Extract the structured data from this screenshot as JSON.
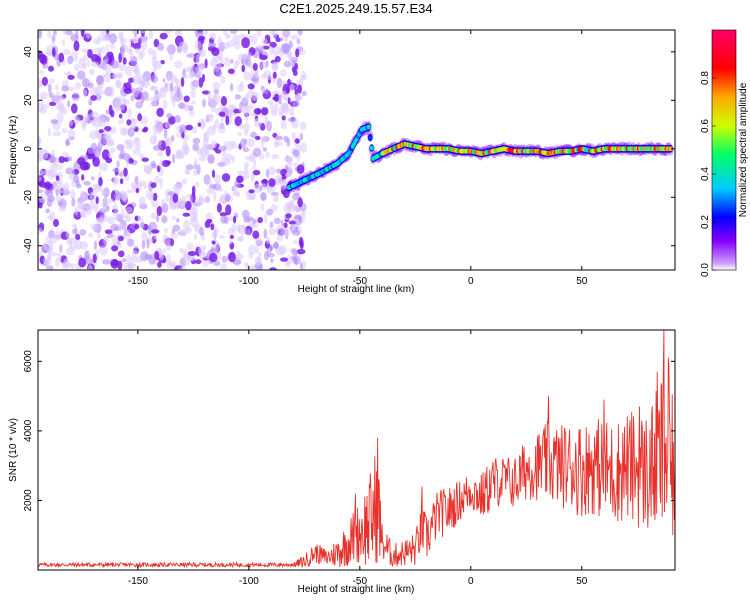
{
  "chart_data": [
    {
      "type": "heatmap",
      "title": "C2E1.2025.249.15.57.E34",
      "xlabel": "Height of straight line (km)",
      "ylabel": "Frequency (Hz)",
      "xlim": [
        -195,
        92
      ],
      "ylim": [
        -50,
        49
      ],
      "xticks": [
        -150,
        -100,
        -50,
        0,
        50
      ],
      "yticks": [
        -40,
        -20,
        0,
        20,
        40
      ],
      "colorbar": {
        "label": "Normalized spectral amplitude",
        "range": [
          0.0,
          1.0
        ],
        "ticks": [
          0.0,
          0.2,
          0.4,
          0.6,
          0.8
        ],
        "colors": [
          "#ffffff",
          "#cc99ff",
          "#8800ff",
          "#0000ff",
          "#00ccff",
          "#00ff66",
          "#ccff00",
          "#ffaa00",
          "#ff0000",
          "#ff0066"
        ]
      },
      "noise_region": {
        "x_range": [
          -195,
          -75
        ],
        "y_range": [
          -50,
          49
        ],
        "level": 0.15
      },
      "trace": [
        {
          "x": -82,
          "f": -16
        },
        {
          "x": -75,
          "f": -13
        },
        {
          "x": -68,
          "f": -10
        },
        {
          "x": -60,
          "f": -6
        },
        {
          "x": -55,
          "f": -2
        },
        {
          "x": -52,
          "f": 3
        },
        {
          "x": -49,
          "f": 8
        },
        {
          "x": -46,
          "f": 9
        },
        {
          "x": -44,
          "f": -4
        },
        {
          "x": -40,
          "f": -2
        },
        {
          "x": -35,
          "f": 0
        },
        {
          "x": -30,
          "f": 2
        },
        {
          "x": -25,
          "f": 1
        },
        {
          "x": -20,
          "f": 0
        },
        {
          "x": -15,
          "f": 0
        },
        {
          "x": -10,
          "f": 0
        },
        {
          "x": -5,
          "f": -1
        },
        {
          "x": 0,
          "f": -1
        },
        {
          "x": 5,
          "f": -2
        },
        {
          "x": 10,
          "f": -1
        },
        {
          "x": 15,
          "f": 0
        },
        {
          "x": 20,
          "f": -1
        },
        {
          "x": 25,
          "f": -1
        },
        {
          "x": 30,
          "f": -1
        },
        {
          "x": 35,
          "f": -2
        },
        {
          "x": 40,
          "f": -1
        },
        {
          "x": 45,
          "f": -1
        },
        {
          "x": 50,
          "f": 0
        },
        {
          "x": 55,
          "f": -1
        },
        {
          "x": 60,
          "f": 0
        },
        {
          "x": 65,
          "f": 0
        },
        {
          "x": 70,
          "f": 0
        },
        {
          "x": 75,
          "f": 0
        },
        {
          "x": 80,
          "f": 0
        },
        {
          "x": 85,
          "f": 0
        },
        {
          "x": 90,
          "f": 0
        }
      ]
    },
    {
      "type": "line",
      "xlabel": "Height of straight line (km)",
      "ylabel": "SNR (10 * v/v)",
      "xlim": [
        -195,
        92
      ],
      "ylim": [
        0,
        6900
      ],
      "xticks": [
        -150,
        -100,
        -50,
        0,
        50
      ],
      "yticks": [
        2000,
        4000,
        6000
      ],
      "color": "#e8312a",
      "envelope": [
        {
          "x": -195,
          "mean": 150,
          "spread": 60
        },
        {
          "x": -80,
          "mean": 150,
          "spread": 60
        },
        {
          "x": -75,
          "mean": 250,
          "spread": 200
        },
        {
          "x": -70,
          "mean": 500,
          "spread": 300
        },
        {
          "x": -65,
          "mean": 350,
          "spread": 250
        },
        {
          "x": -60,
          "mean": 500,
          "spread": 450
        },
        {
          "x": -55,
          "mean": 800,
          "spread": 700
        },
        {
          "x": -50,
          "mean": 1100,
          "spread": 900
        },
        {
          "x": -45,
          "mean": 1400,
          "spread": 1500
        },
        {
          "x": -42,
          "mean": 2000,
          "spread": 1800
        },
        {
          "x": -40,
          "mean": 800,
          "spread": 600
        },
        {
          "x": -35,
          "mean": 400,
          "spread": 350
        },
        {
          "x": -30,
          "mean": 500,
          "spread": 400
        },
        {
          "x": -25,
          "mean": 600,
          "spread": 500
        },
        {
          "x": -22,
          "mean": 1200,
          "spread": 700
        },
        {
          "x": -20,
          "mean": 900,
          "spread": 700
        },
        {
          "x": -15,
          "mean": 1600,
          "spread": 700
        },
        {
          "x": -10,
          "mean": 1700,
          "spread": 700
        },
        {
          "x": -5,
          "mean": 2000,
          "spread": 600
        },
        {
          "x": 0,
          "mean": 2300,
          "spread": 600
        },
        {
          "x": 5,
          "mean": 2100,
          "spread": 700
        },
        {
          "x": 10,
          "mean": 2500,
          "spread": 800
        },
        {
          "x": 15,
          "mean": 2600,
          "spread": 700
        },
        {
          "x": 20,
          "mean": 2500,
          "spread": 800
        },
        {
          "x": 25,
          "mean": 2900,
          "spread": 900
        },
        {
          "x": 30,
          "mean": 3000,
          "spread": 1000
        },
        {
          "x": 35,
          "mean": 3100,
          "spread": 1200
        },
        {
          "x": 40,
          "mean": 3000,
          "spread": 1200
        },
        {
          "x": 45,
          "mean": 3000,
          "spread": 1300
        },
        {
          "x": 50,
          "mean": 2900,
          "spread": 1400
        },
        {
          "x": 55,
          "mean": 3000,
          "spread": 1400
        },
        {
          "x": 60,
          "mean": 2900,
          "spread": 1500
        },
        {
          "x": 65,
          "mean": 2800,
          "spread": 1500
        },
        {
          "x": 70,
          "mean": 3000,
          "spread": 1600
        },
        {
          "x": 75,
          "mean": 2900,
          "spread": 1700
        },
        {
          "x": 80,
          "mean": 2800,
          "spread": 1800
        },
        {
          "x": 85,
          "mean": 3200,
          "spread": 2200
        },
        {
          "x": 88,
          "mean": 3500,
          "spread": 3000
        },
        {
          "x": 92,
          "mean": 2600,
          "spread": 1800
        }
      ],
      "peaks": [
        {
          "x": -42,
          "y": 3800
        },
        {
          "x": -52,
          "y": 2200
        },
        {
          "x": -22,
          "y": 2400
        },
        {
          "x": 35,
          "y": 5000
        },
        {
          "x": 60,
          "y": 4900
        },
        {
          "x": 76,
          "y": 4700
        },
        {
          "x": 84,
          "y": 5700
        },
        {
          "x": 87,
          "y": 6900
        },
        {
          "x": 89,
          "y": 6100
        }
      ]
    }
  ]
}
